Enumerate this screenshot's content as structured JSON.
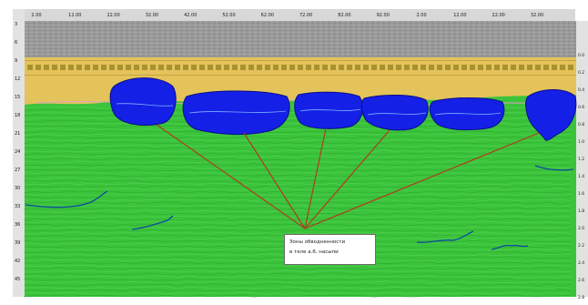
{
  "colors": {
    "background": "#ffffff",
    "top_band": "#9a9a9a",
    "fill_layer": "#e3c35a",
    "fill_stripe": "#a8922f",
    "ground": "#3bc43b",
    "void_zone": "#1420e6",
    "void_outline": "#0a0e8a",
    "reflector_line": "#0e4aa0",
    "leader_line": "#b23a1e",
    "surface_trace": "#e0a0c0"
  },
  "top_axis_ticks": [
    "2.00",
    "12.00",
    "22.00",
    "32.00",
    "42.00",
    "52.00",
    "62.00",
    "72.00",
    "82.00",
    "92.00",
    "2.00",
    "12.00",
    "22.00",
    "32.00"
  ],
  "left_axis_ticks": [
    "3",
    "6",
    "9",
    "12",
    "15",
    "18",
    "21",
    "24",
    "27",
    "30",
    "33",
    "36",
    "39",
    "42",
    "45"
  ],
  "right_axis_ticks": [
    "0.0",
    "0.2",
    "0.4",
    "0.6",
    "0.8",
    "1.0",
    "1.2",
    "1.4",
    "1.6",
    "1.8",
    "2.0",
    "2.2",
    "2.4",
    "2.6",
    "2.8"
  ],
  "callout": {
    "line1": "Зоны обводненности",
    "line2": "в теле а.б. насыпи"
  }
}
